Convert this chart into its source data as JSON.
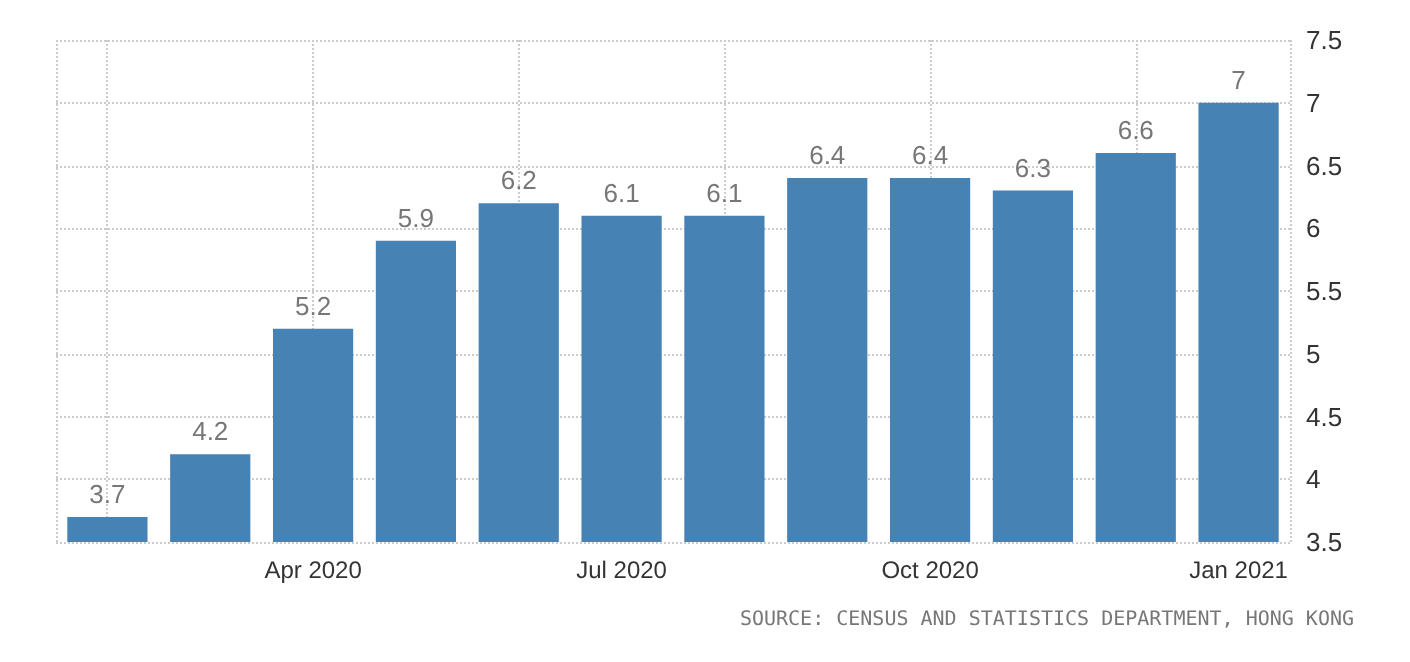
{
  "chart_data": {
    "type": "bar",
    "categories": [
      null,
      null,
      "Apr 2020",
      null,
      null,
      "Jul 2020",
      null,
      null,
      "Oct 2020",
      null,
      null,
      "Jan 2021"
    ],
    "values": [
      3.7,
      4.2,
      5.2,
      5.9,
      6.2,
      6.1,
      6.1,
      6.4,
      6.4,
      6.3,
      6.6,
      7
    ],
    "color": "#4682b4",
    "ylim": [
      3.5,
      7.5
    ],
    "yticks": [
      3.5,
      4,
      4.5,
      5,
      5.5,
      6,
      6.5,
      7,
      7.5
    ],
    "grid": true,
    "data_labels": true,
    "annotations": [
      "SOURCE: CENSUS AND STATISTICS DEPARTMENT, HONG KONG"
    ]
  }
}
